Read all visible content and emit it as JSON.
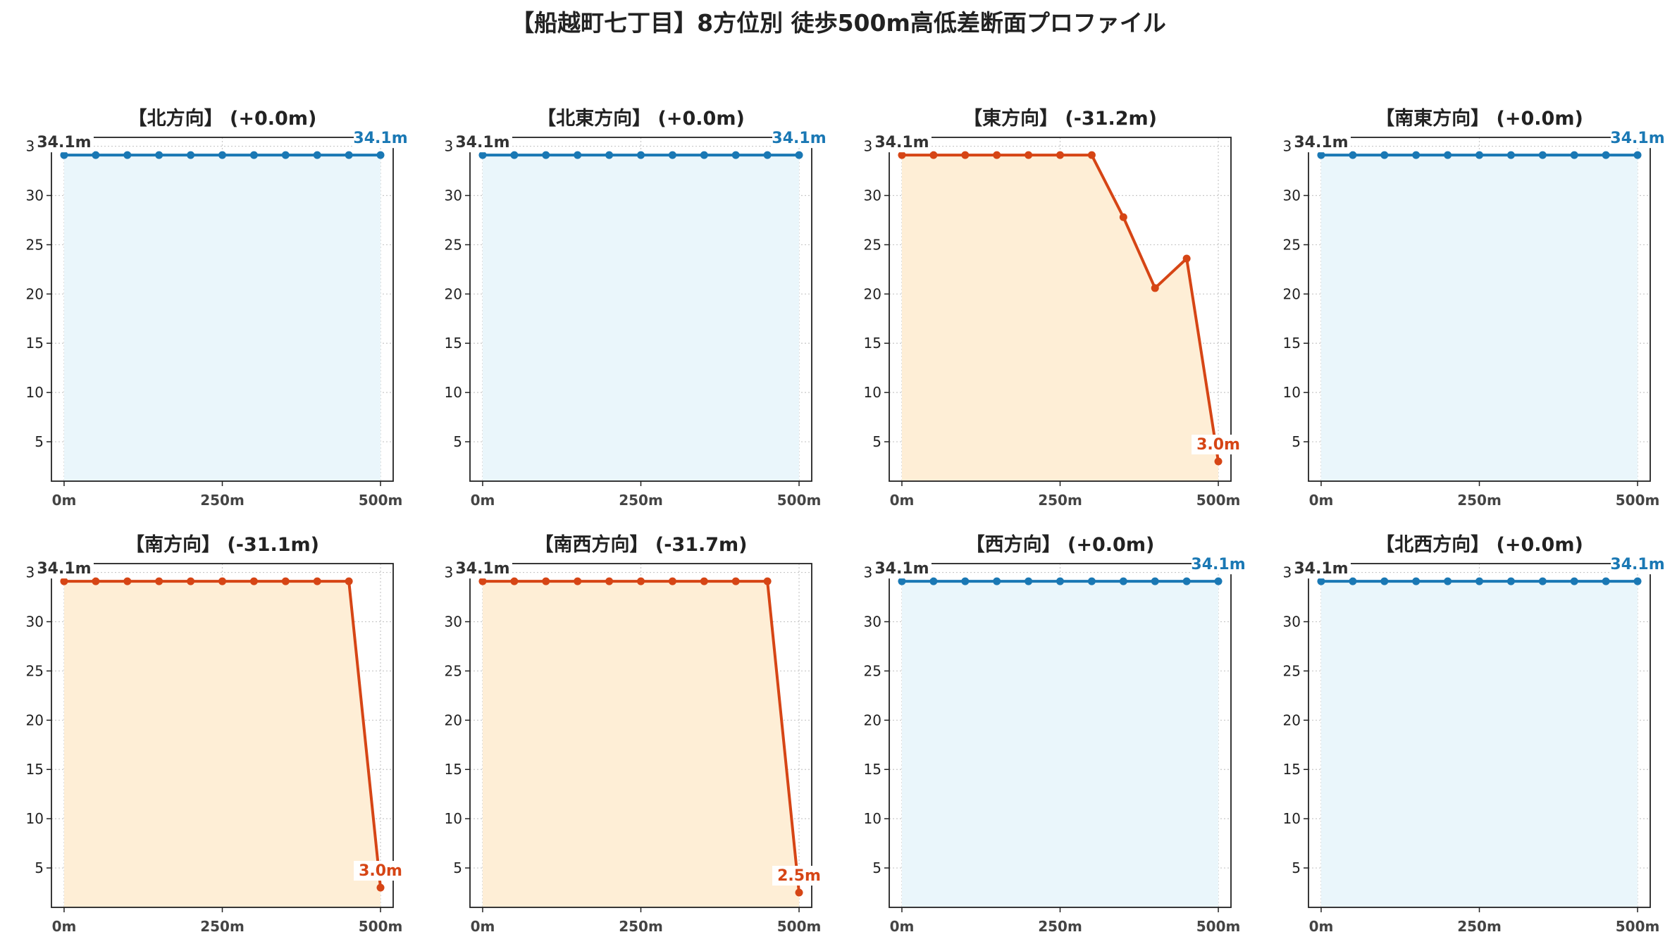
{
  "suptitle": "【船越町七丁目】8方位別 徒歩500m高低差断面プロファイル",
  "colors": {
    "flat_line": "#1a78b4",
    "flat_fill": "#eaf6fb",
    "drop_line": "#d64515",
    "drop_fill": "#feeed6",
    "grid": "#c8c8c8"
  },
  "chart_data": [
    {
      "type": "area",
      "title": "【北方向】 (+0.0m)",
      "x": [
        0,
        50,
        100,
        150,
        200,
        250,
        300,
        350,
        400,
        450,
        500
      ],
      "values": [
        34.1,
        34.1,
        34.1,
        34.1,
        34.1,
        34.1,
        34.1,
        34.1,
        34.1,
        34.1,
        34.1
      ],
      "start_label": "34.1m",
      "end_label": "34.1m",
      "trend": "flat",
      "xticks": [
        "0m",
        "250m",
        "500m"
      ],
      "yticks": [
        5,
        10,
        15,
        20,
        25,
        30,
        35
      ],
      "xlim": [
        -20,
        520
      ],
      "ylim": [
        1.0,
        35.9
      ],
      "grid": true
    },
    {
      "type": "area",
      "title": "【北東方向】 (+0.0m)",
      "x": [
        0,
        50,
        100,
        150,
        200,
        250,
        300,
        350,
        400,
        450,
        500
      ],
      "values": [
        34.1,
        34.1,
        34.1,
        34.1,
        34.1,
        34.1,
        34.1,
        34.1,
        34.1,
        34.1,
        34.1
      ],
      "start_label": "34.1m",
      "end_label": "34.1m",
      "trend": "flat",
      "xticks": [
        "0m",
        "250m",
        "500m"
      ],
      "yticks": [
        5,
        10,
        15,
        20,
        25,
        30,
        35
      ],
      "xlim": [
        -20,
        520
      ],
      "ylim": [
        1.0,
        35.9
      ],
      "grid": true
    },
    {
      "type": "area",
      "title": "【東方向】 (-31.2m)",
      "x": [
        0,
        50,
        100,
        150,
        200,
        250,
        300,
        350,
        400,
        450,
        500
      ],
      "values": [
        34.1,
        34.1,
        34.1,
        34.1,
        34.1,
        34.1,
        34.1,
        27.8,
        20.6,
        23.6,
        3.0
      ],
      "start_label": "34.1m",
      "end_label": "3.0m",
      "trend": "drop",
      "xticks": [
        "0m",
        "250m",
        "500m"
      ],
      "yticks": [
        5,
        10,
        15,
        20,
        25,
        30,
        35
      ],
      "xlim": [
        -20,
        520
      ],
      "ylim": [
        1.0,
        35.9
      ],
      "grid": true
    },
    {
      "type": "area",
      "title": "【南東方向】 (+0.0m)",
      "x": [
        0,
        50,
        100,
        150,
        200,
        250,
        300,
        350,
        400,
        450,
        500
      ],
      "values": [
        34.1,
        34.1,
        34.1,
        34.1,
        34.1,
        34.1,
        34.1,
        34.1,
        34.1,
        34.1,
        34.1
      ],
      "start_label": "34.1m",
      "end_label": "34.1m",
      "trend": "flat",
      "xticks": [
        "0m",
        "250m",
        "500m"
      ],
      "yticks": [
        5,
        10,
        15,
        20,
        25,
        30,
        35
      ],
      "xlim": [
        -20,
        520
      ],
      "ylim": [
        1.0,
        35.9
      ],
      "grid": true
    },
    {
      "type": "area",
      "title": "【南方向】 (-31.1m)",
      "x": [
        0,
        50,
        100,
        150,
        200,
        250,
        300,
        350,
        400,
        450,
        500
      ],
      "values": [
        34.1,
        34.1,
        34.1,
        34.1,
        34.1,
        34.1,
        34.1,
        34.1,
        34.1,
        34.1,
        3.0
      ],
      "start_label": "34.1m",
      "end_label": "3.0m",
      "trend": "drop",
      "xticks": [
        "0m",
        "250m",
        "500m"
      ],
      "yticks": [
        5,
        10,
        15,
        20,
        25,
        30,
        35
      ],
      "xlim": [
        -20,
        520
      ],
      "ylim": [
        1.0,
        35.9
      ],
      "grid": true
    },
    {
      "type": "area",
      "title": "【南西方向】 (-31.7m)",
      "x": [
        0,
        50,
        100,
        150,
        200,
        250,
        300,
        350,
        400,
        450,
        500
      ],
      "values": [
        34.1,
        34.1,
        34.1,
        34.1,
        34.1,
        34.1,
        34.1,
        34.1,
        34.1,
        34.1,
        2.5
      ],
      "start_label": "34.1m",
      "end_label": "2.5m",
      "trend": "drop",
      "xticks": [
        "0m",
        "250m",
        "500m"
      ],
      "yticks": [
        5,
        10,
        15,
        20,
        25,
        30,
        35
      ],
      "xlim": [
        -20,
        520
      ],
      "ylim": [
        1.0,
        35.9
      ],
      "grid": true
    },
    {
      "type": "area",
      "title": "【西方向】 (+0.0m)",
      "x": [
        0,
        50,
        100,
        150,
        200,
        250,
        300,
        350,
        400,
        450,
        500
      ],
      "values": [
        34.1,
        34.1,
        34.1,
        34.1,
        34.1,
        34.1,
        34.1,
        34.1,
        34.1,
        34.1,
        34.1
      ],
      "start_label": "34.1m",
      "end_label": "34.1m",
      "trend": "flat",
      "xticks": [
        "0m",
        "250m",
        "500m"
      ],
      "yticks": [
        5,
        10,
        15,
        20,
        25,
        30,
        35
      ],
      "xlim": [
        -20,
        520
      ],
      "ylim": [
        1.0,
        35.9
      ],
      "grid": true
    },
    {
      "type": "area",
      "title": "【北西方向】 (+0.0m)",
      "x": [
        0,
        50,
        100,
        150,
        200,
        250,
        300,
        350,
        400,
        450,
        500
      ],
      "values": [
        34.1,
        34.1,
        34.1,
        34.1,
        34.1,
        34.1,
        34.1,
        34.1,
        34.1,
        34.1,
        34.1
      ],
      "start_label": "34.1m",
      "end_label": "34.1m",
      "trend": "flat",
      "xticks": [
        "0m",
        "250m",
        "500m"
      ],
      "yticks": [
        5,
        10,
        15,
        20,
        25,
        30,
        35
      ],
      "xlim": [
        -20,
        520
      ],
      "ylim": [
        1.0,
        35.9
      ],
      "grid": true
    }
  ]
}
